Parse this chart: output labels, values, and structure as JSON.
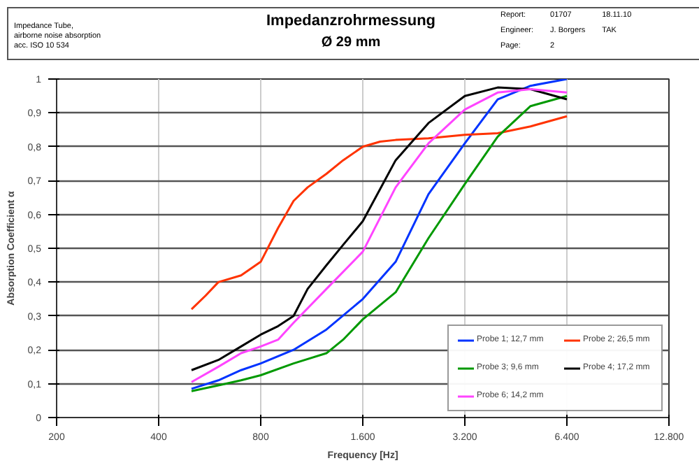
{
  "chart_data": {
    "type": "line",
    "title": "Impedanzrohrmessung",
    "subtitle": "Ø 29 mm",
    "annotations": [
      "Impedance Tube,",
      "airborne noise absorption",
      "acc. ISO 10 534",
      "Report:",
      "01707",
      "18.11.10",
      "Engineer:",
      "J. Borgers",
      "TAK",
      "Page:",
      "2"
    ],
    "xlabel": "Frequency [Hz]",
    "ylabel": "Absorption Coefficient α",
    "log": "x",
    "xlim": [
      200,
      12800
    ],
    "xticks": [
      200,
      400,
      800,
      {
        "value": 1600,
        "label": "1.600"
      },
      {
        "value": 3200,
        "label": "3.200"
      },
      {
        "value": 6400,
        "label": "6.400"
      },
      {
        "value": 12800,
        "label": "12.800"
      }
    ],
    "ylim": [
      0,
      1
    ],
    "yticks": [
      0,
      {
        "value": 0.1,
        "label": "0,1"
      },
      {
        "value": 0.2,
        "label": "0,2"
      },
      {
        "value": 0.3,
        "label": "0,3"
      },
      {
        "value": 0.4,
        "label": "0,4"
      },
      {
        "value": 0.5,
        "label": "0,5"
      },
      {
        "value": 0.6,
        "label": "0,6"
      },
      {
        "value": 0.7,
        "label": "0,7"
      },
      {
        "value": 0.8,
        "label": "0,8"
      },
      {
        "value": 0.9,
        "label": "0,9"
      },
      1
    ],
    "grid": true,
    "legend": "bottom right",
    "marker": "none",
    "line_style": "solid",
    "series": [
      {
        "name": "Probe 1; 12,7 mm",
        "color": "#0033ff",
        "x": [
          500,
          600,
          700,
          800,
          1000,
          1250,
          1600,
          2000,
          2500,
          3200,
          4000,
          5000,
          6400
        ],
        "values": [
          0.085,
          0.11,
          0.14,
          0.16,
          0.2,
          0.26,
          0.35,
          0.46,
          0.66,
          0.81,
          0.94,
          0.98,
          1.0
        ]
      },
      {
        "name": "Probe 2; 26,5 mm",
        "color": "#ff3300",
        "x": [
          500,
          550,
          600,
          700,
          800,
          900,
          1000,
          1100,
          1250,
          1400,
          1600,
          1800,
          2000,
          2500,
          3200,
          4000,
          5000,
          6400
        ],
        "values": [
          0.32,
          0.36,
          0.4,
          0.42,
          0.46,
          0.56,
          0.64,
          0.68,
          0.72,
          0.76,
          0.8,
          0.815,
          0.82,
          0.825,
          0.835,
          0.84,
          0.86,
          0.89
        ]
      },
      {
        "name": "Probe 3; 9,6 mm",
        "color": "#009900",
        "x": [
          500,
          600,
          700,
          800,
          1000,
          1250,
          1400,
          1600,
          2000,
          2500,
          3200,
          4000,
          5000,
          6400
        ],
        "values": [
          0.078,
          0.095,
          0.11,
          0.125,
          0.16,
          0.19,
          0.23,
          0.29,
          0.37,
          0.53,
          0.69,
          0.83,
          0.92,
          0.95
        ]
      },
      {
        "name": "Probe 4; 17,2 mm",
        "color": "#000000",
        "x": [
          500,
          600,
          700,
          800,
          900,
          1000,
          1100,
          1250,
          1400,
          1600,
          2000,
          2500,
          3200,
          4000,
          5000,
          6400
        ],
        "values": [
          0.14,
          0.17,
          0.21,
          0.245,
          0.27,
          0.3,
          0.38,
          0.45,
          0.51,
          0.58,
          0.76,
          0.87,
          0.95,
          0.975,
          0.97,
          0.94
        ]
      },
      {
        "name": "Probe 6; 14,2 mm",
        "color": "#ff44ff",
        "x": [
          500,
          600,
          700,
          800,
          900,
          1000,
          1250,
          1600,
          2000,
          2500,
          3200,
          4000,
          5000,
          6400
        ],
        "values": [
          0.105,
          0.15,
          0.19,
          0.21,
          0.23,
          0.28,
          0.38,
          0.49,
          0.68,
          0.81,
          0.91,
          0.96,
          0.97,
          0.96
        ]
      }
    ]
  }
}
